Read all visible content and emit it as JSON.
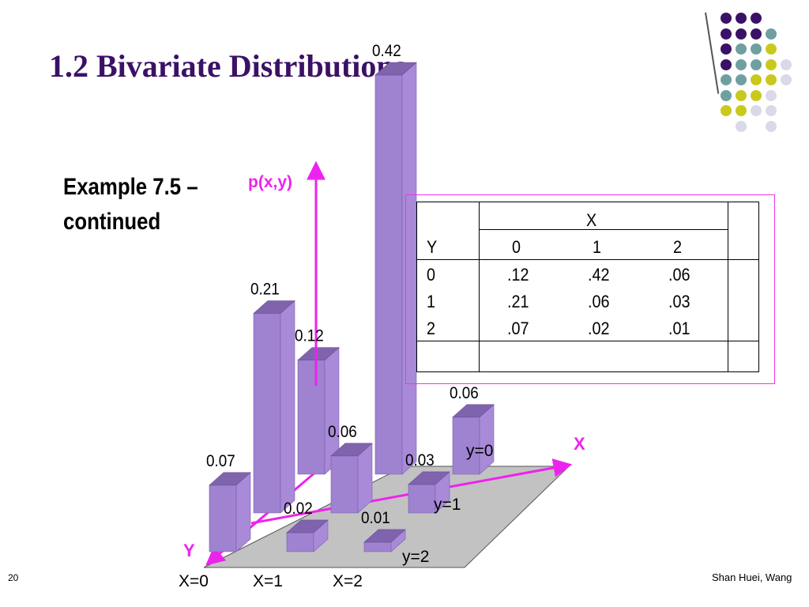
{
  "slide": {
    "title": "1.2 Bivariate Distributions",
    "subtitle": "Example 7.5 – continued",
    "page_number": "20",
    "author": "Shan Huei, Wang"
  },
  "colors": {
    "title": "#3b1166",
    "accent": "#ee22ee",
    "bar_front": "#9f82d0",
    "bar_side": "#a98ad8",
    "bar_top": "#7f64ad",
    "floor": "#c2c2c2",
    "dots": [
      "#3b1166",
      "#6f9fa1",
      "#c9c91d",
      "#d9d9e8"
    ]
  },
  "table": {
    "x_header": "X",
    "y_header": "Y",
    "columns": [
      "0",
      "1",
      "2"
    ],
    "rows": [
      {
        "y": "0",
        "values": [
          ".12",
          ".42",
          ".06"
        ]
      },
      {
        "y": "1",
        "values": [
          ".21",
          ".06",
          ".03"
        ]
      },
      {
        "y": "2",
        "values": [
          ".07",
          ".02",
          ".01"
        ]
      }
    ]
  },
  "chart_data": {
    "type": "bar",
    "subtype": "3d-bar",
    "title": "",
    "zlabel": "p(x,y)",
    "xlabel": "X",
    "ylabel": "Y",
    "x_categories": [
      "X=0",
      "X=1",
      "X=2"
    ],
    "y_categories": [
      "y=0",
      "y=1",
      "y=2"
    ],
    "series": [
      {
        "name": "y=0",
        "values": [
          0.12,
          0.42,
          0.06
        ]
      },
      {
        "name": "y=1",
        "values": [
          0.21,
          0.06,
          0.03
        ]
      },
      {
        "name": "y=2",
        "values": [
          0.07,
          0.02,
          0.01
        ]
      }
    ],
    "value_labels": [
      [
        "0.12",
        "0.42",
        "0.06"
      ],
      [
        "0.21",
        "0.06",
        "0.03"
      ],
      [
        "0.07",
        "0.02",
        "0.01"
      ]
    ],
    "zlim": [
      0,
      0.42
    ]
  }
}
